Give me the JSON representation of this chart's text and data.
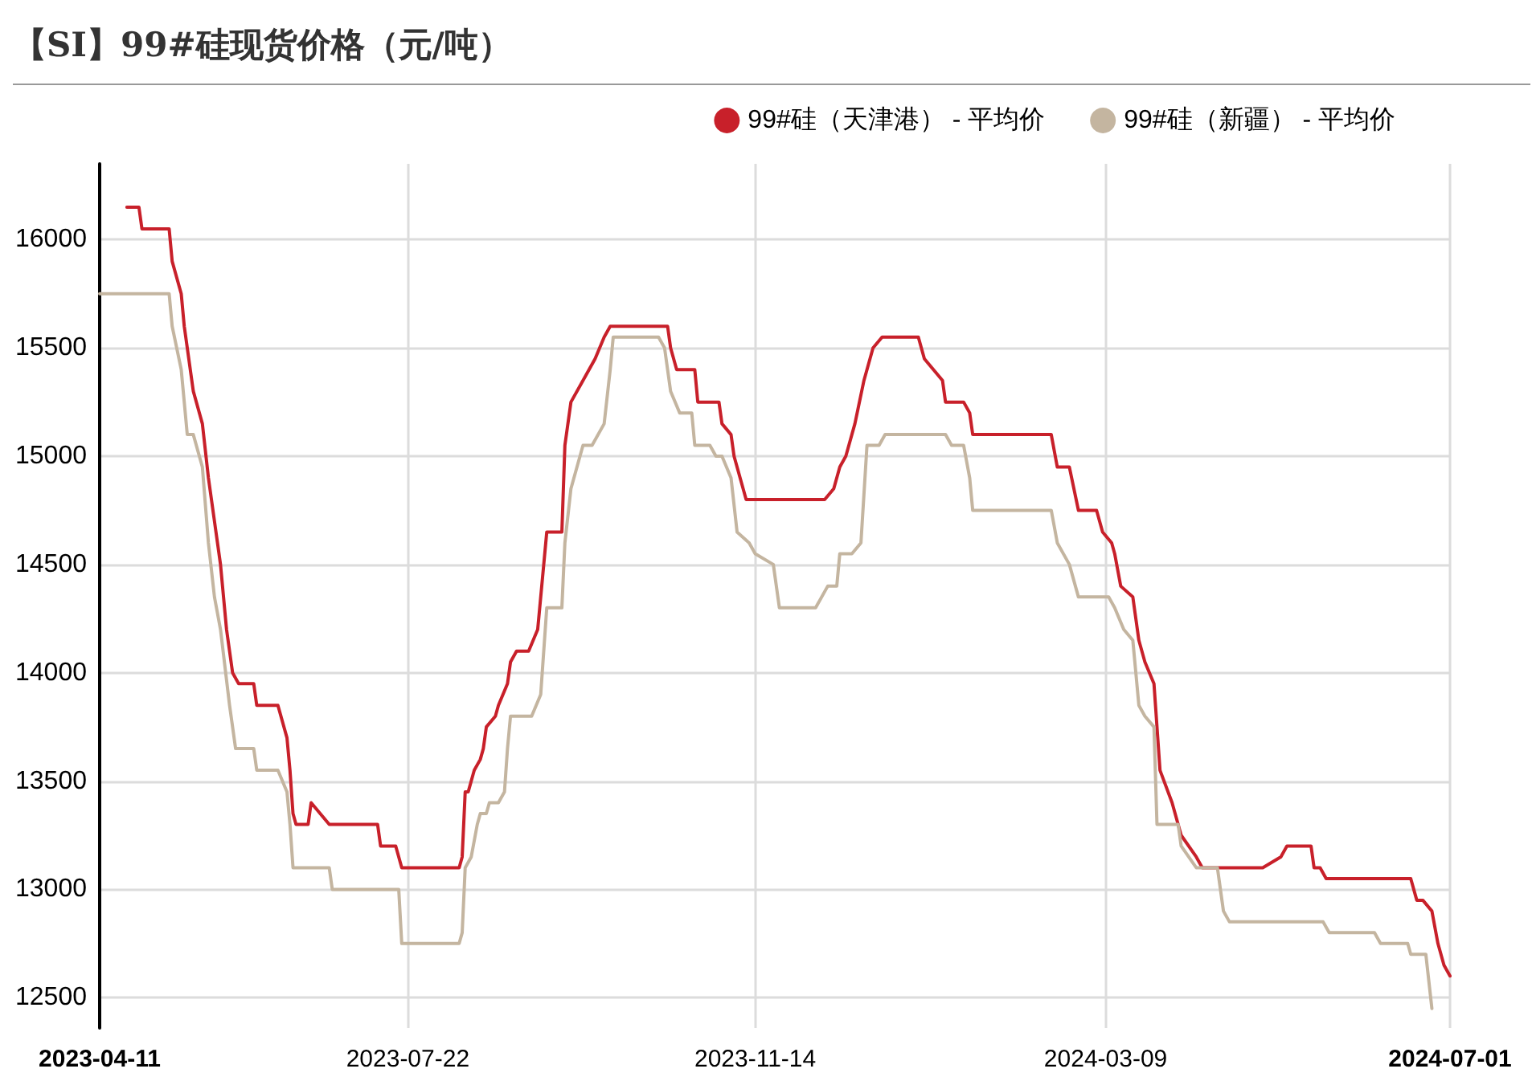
{
  "chart_data": {
    "type": "line",
    "title": "【SI】99#硅现货价格（元/吨）",
    "legend": "top right",
    "grid": true,
    "marker": "none",
    "line_style": "solid",
    "xlim": [
      "2023-04-11",
      "2024-07-01"
    ],
    "xticks": [
      "2023-04-11",
      "2023-07-22",
      "2023-11-14",
      "2024-03-09",
      "2024-07-01"
    ],
    "ylim": [
      12360,
      16350
    ],
    "yticks": [
      12500,
      13000,
      13500,
      14000,
      14500,
      15000,
      15500,
      16000
    ],
    "series": [
      {
        "name": "99#硅（天津港） - 平均价",
        "color": "#c8202a",
        "x": [
          "2023-04-20",
          "2023-04-24",
          "2023-04-25",
          "2023-05-04",
          "2023-05-05",
          "2023-05-08",
          "2023-05-09",
          "2023-05-12",
          "2023-05-15",
          "2023-05-17",
          "2023-05-19",
          "2023-05-21",
          "2023-05-23",
          "2023-05-25",
          "2023-05-27",
          "2023-06-01",
          "2023-06-02",
          "2023-06-09",
          "2023-06-12",
          "2023-06-13",
          "2023-06-14",
          "2023-06-15",
          "2023-06-19",
          "2023-06-20",
          "2023-06-26",
          "2023-07-12",
          "2023-07-13",
          "2023-07-18",
          "2023-07-20",
          "2023-08-08",
          "2023-08-09",
          "2023-08-10",
          "2023-08-11",
          "2023-08-13",
          "2023-08-15",
          "2023-08-16",
          "2023-08-17",
          "2023-08-20",
          "2023-08-21",
          "2023-08-24",
          "2023-08-25",
          "2023-08-27",
          "2023-08-31",
          "2023-09-03",
          "2023-09-06",
          "2023-09-11",
          "2023-09-12",
          "2023-09-14",
          "2023-09-18",
          "2023-09-20",
          "2023-09-22",
          "2023-09-25",
          "2023-09-27",
          "2023-10-16",
          "2023-10-17",
          "2023-10-19",
          "2023-10-25",
          "2023-10-26",
          "2023-11-02",
          "2023-11-03",
          "2023-11-06",
          "2023-11-07",
          "2023-11-09",
          "2023-11-11",
          "2023-12-07",
          "2023-12-10",
          "2023-12-12",
          "2023-12-14",
          "2023-12-17",
          "2023-12-20",
          "2023-12-23",
          "2023-12-26",
          "2024-01-07",
          "2024-01-09",
          "2024-01-12",
          "2024-01-15",
          "2024-01-16",
          "2024-01-22",
          "2024-01-24",
          "2024-01-25",
          "2024-02-20",
          "2024-02-22",
          "2024-02-26",
          "2024-02-29",
          "2024-03-06",
          "2024-03-08",
          "2024-03-11",
          "2024-03-12",
          "2024-03-14",
          "2024-03-18",
          "2024-03-20",
          "2024-03-22",
          "2024-03-25",
          "2024-03-27",
          "2024-03-31",
          "2024-04-03",
          "2024-04-08",
          "2024-04-10",
          "2024-04-30",
          "2024-05-06",
          "2024-05-08",
          "2024-05-16",
          "2024-05-17",
          "2024-05-19",
          "2024-05-21",
          "2024-06-18",
          "2024-06-20",
          "2024-06-22",
          "2024-06-25",
          "2024-06-27",
          "2024-06-29",
          "2024-07-01"
        ],
        "values": [
          16150,
          16150,
          16050,
          16050,
          15900,
          15750,
          15600,
          15300,
          15150,
          14900,
          14700,
          14500,
          14200,
          14000,
          13950,
          13950,
          13850,
          13850,
          13700,
          13550,
          13350,
          13300,
          13300,
          13400,
          13300,
          13300,
          13200,
          13200,
          13100,
          13100,
          13150,
          13450,
          13450,
          13550,
          13600,
          13650,
          13750,
          13800,
          13850,
          13950,
          14050,
          14100,
          14100,
          14200,
          14650,
          14650,
          15050,
          15250,
          15350,
          15400,
          15450,
          15550,
          15600,
          15600,
          15500,
          15400,
          15400,
          15250,
          15250,
          15150,
          15100,
          15000,
          14900,
          14800,
          14800,
          14850,
          14950,
          15000,
          15150,
          15350,
          15500,
          15550,
          15550,
          15450,
          15400,
          15350,
          15250,
          15250,
          15200,
          15100,
          15100,
          14950,
          14950,
          14750,
          14750,
          14650,
          14600,
          14550,
          14400,
          14350,
          14150,
          14050,
          13950,
          13550,
          13400,
          13250,
          13150,
          13100,
          13100,
          13150,
          13200,
          13200,
          13100,
          13100,
          13050,
          13050,
          12950,
          12950,
          12900,
          12750,
          12650,
          12600
        ]
      },
      {
        "name": "99#硅（新疆） - 平均价",
        "color": "#c4b5a0",
        "x": [
          "2023-04-11",
          "2023-05-04",
          "2023-05-05",
          "2023-05-08",
          "2023-05-10",
          "2023-05-12",
          "2023-05-15",
          "2023-05-17",
          "2023-05-19",
          "2023-05-21",
          "2023-05-24",
          "2023-05-26",
          "2023-06-01",
          "2023-06-02",
          "2023-06-09",
          "2023-06-12",
          "2023-06-13",
          "2023-06-14",
          "2023-06-26",
          "2023-06-27",
          "2023-07-19",
          "2023-07-20",
          "2023-08-08",
          "2023-08-09",
          "2023-08-10",
          "2023-08-12",
          "2023-08-14",
          "2023-08-15",
          "2023-08-17",
          "2023-08-18",
          "2023-08-21",
          "2023-08-23",
          "2023-08-24",
          "2023-08-25",
          "2023-09-01",
          "2023-09-04",
          "2023-09-06",
          "2023-09-11",
          "2023-09-12",
          "2023-09-14",
          "2023-09-18",
          "2023-09-21",
          "2023-09-25",
          "2023-09-27",
          "2023-09-28",
          "2023-10-13",
          "2023-10-15",
          "2023-10-17",
          "2023-10-20",
          "2023-10-24",
          "2023-10-25",
          "2023-10-30",
          "2023-11-01",
          "2023-11-03",
          "2023-11-06",
          "2023-11-08",
          "2023-11-12",
          "2023-11-14",
          "2023-11-20",
          "2023-11-22",
          "2023-12-04",
          "2023-12-08",
          "2023-12-11",
          "2023-12-12",
          "2023-12-16",
          "2023-12-19",
          "2023-12-21",
          "2023-12-25",
          "2023-12-27",
          "2024-01-16",
          "2024-01-18",
          "2024-01-22",
          "2024-01-24",
          "2024-01-25",
          "2024-02-20",
          "2024-02-22",
          "2024-02-26",
          "2024-02-29",
          "2024-03-10",
          "2024-03-12",
          "2024-03-15",
          "2024-03-18",
          "2024-03-20",
          "2024-03-22",
          "2024-03-25",
          "2024-03-26",
          "2024-04-02",
          "2024-04-03",
          "2024-04-08",
          "2024-04-15",
          "2024-04-17",
          "2024-04-19",
          "2024-05-20",
          "2024-05-22",
          "2024-06-06",
          "2024-06-08",
          "2024-06-17",
          "2024-06-18",
          "2024-06-23",
          "2024-06-25"
        ],
        "values": [
          15750,
          15750,
          15600,
          15400,
          15100,
          15100,
          14950,
          14600,
          14350,
          14200,
          13850,
          13650,
          13650,
          13550,
          13550,
          13450,
          13300,
          13100,
          13100,
          13000,
          13000,
          12750,
          12750,
          12800,
          13100,
          13150,
          13300,
          13350,
          13350,
          13400,
          13400,
          13450,
          13650,
          13800,
          13800,
          13900,
          14300,
          14300,
          14600,
          14850,
          15050,
          15050,
          15150,
          15400,
          15550,
          15550,
          15500,
          15300,
          15200,
          15200,
          15050,
          15050,
          15000,
          15000,
          14900,
          14650,
          14600,
          14550,
          14500,
          14300,
          14300,
          14400,
          14400,
          14550,
          14550,
          14600,
          15050,
          15050,
          15100,
          15100,
          15050,
          15050,
          14900,
          14750,
          14750,
          14600,
          14500,
          14350,
          14350,
          14300,
          14200,
          14150,
          13850,
          13800,
          13750,
          13300,
          13300,
          13200,
          13100,
          13100,
          12900,
          12850,
          12850,
          12800,
          12800,
          12750,
          12750,
          12700,
          12700,
          12450
        ]
      }
    ]
  }
}
